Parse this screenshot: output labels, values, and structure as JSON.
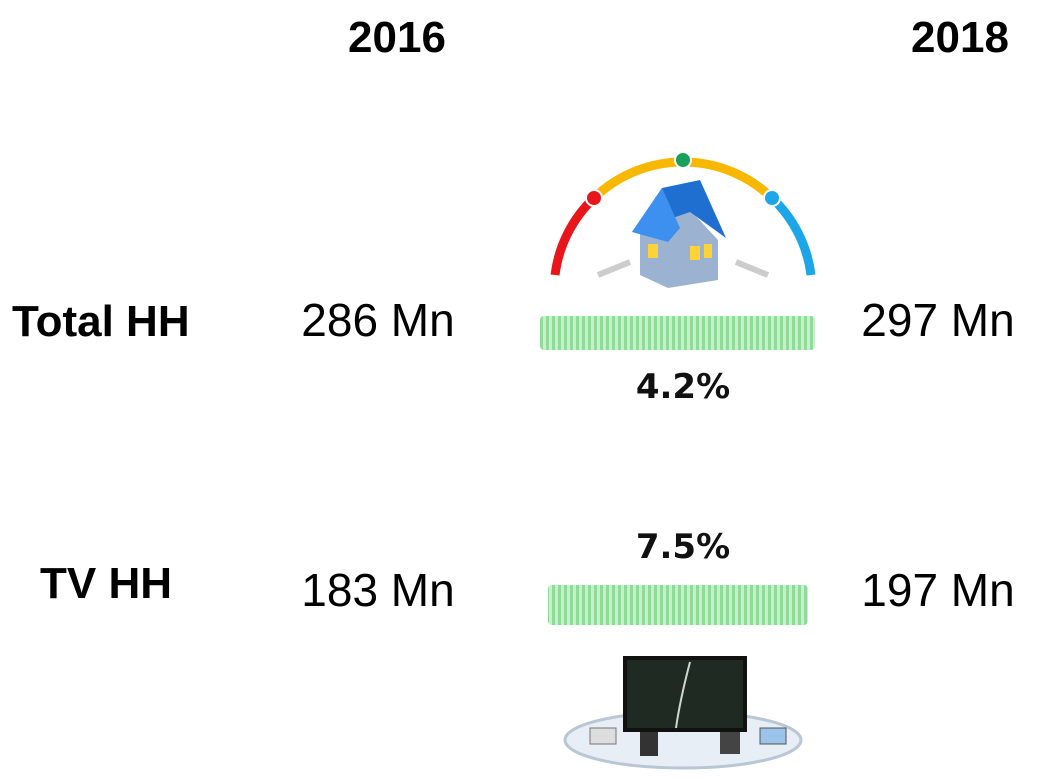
{
  "header": {
    "year_from": "2016",
    "year_to": "2018"
  },
  "rows": [
    {
      "label": "Total HH",
      "value_from": "286 Mn",
      "value_to": "297 Mn",
      "growth": "4.2%"
    },
    {
      "label": "TV HH",
      "value_from": "183 Mn",
      "value_to": "197 Mn",
      "growth": "7.5%"
    }
  ]
}
